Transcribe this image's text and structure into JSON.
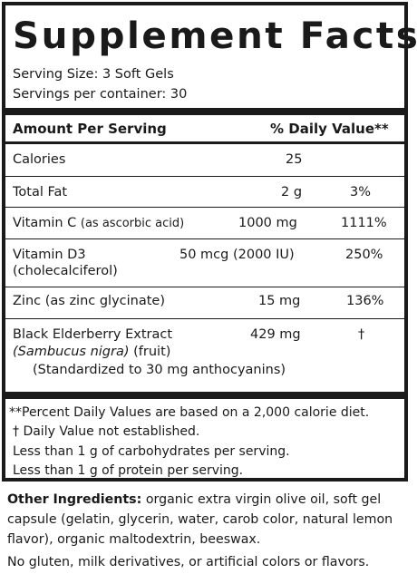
{
  "label": {
    "title": "Supplement Facts",
    "serving_size": "Serving Size: 3 Soft Gels",
    "servings_per_container": "Servings per container: 30",
    "header_amount": "Amount Per Serving",
    "header_dv": "% Daily Value**",
    "rows": [
      {
        "name": "Calories",
        "detail": "",
        "amount": "25",
        "dv": ""
      },
      {
        "name": "Total Fat",
        "detail": "",
        "amount": "2 g",
        "dv": "3%"
      },
      {
        "name": "Vitamin C",
        "detail": "(as ascorbic acid)",
        "amount": "1000 mg",
        "dv": "1111%"
      },
      {
        "name": "Vitamin D3",
        "detail": "(cholecalciferol)",
        "amount": "50 mcg (2000 IU)",
        "dv": "250%"
      },
      {
        "name": "Zinc (as zinc glycinate)",
        "detail": "",
        "amount": "15 mg",
        "dv": "136%"
      },
      {
        "name": "Black Elderberry Extract",
        "detail_italic": "(Sambucus nigra)",
        "detail": "(fruit)",
        "detail2": "(Standardized to 30 mg anthocyanins)",
        "amount": "429 mg",
        "dv": "†"
      }
    ],
    "footnotes": [
      "**Percent Daily Values are based on a 2,000 calorie diet.",
      "†  Daily Value not established.",
      "Less than 1 g of carbohydrates per serving.",
      "Less than 1 g of protein per serving."
    ]
  },
  "other": {
    "ingredients_label": "Other Ingredients:",
    "ingredients_text": "organic extra virgin olive oil, soft gel capsule (gelatin, glycerin, water, carob color, natural lemon flavor), organic maltodextrin, beeswax.",
    "disclaimer": "No gluten, milk derivatives, or artificial colors or flavors."
  }
}
